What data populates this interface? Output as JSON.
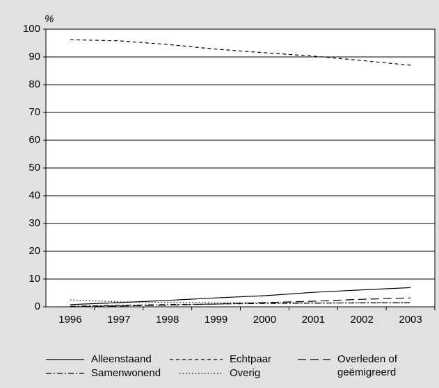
{
  "chart_data": {
    "type": "line",
    "y_label": "%",
    "categories": [
      "1996",
      "1997",
      "1998",
      "1999",
      "2000",
      "2001",
      "2002",
      "2003"
    ],
    "series": [
      {
        "name": "Alleenstaand",
        "color": "#000000",
        "values": [
          0.8,
          1.5,
          2.3,
          3.2,
          4.0,
          5.2,
          6.1,
          6.9
        ]
      },
      {
        "name": "Echtpaar",
        "color": "#000000",
        "values": [
          96.2,
          95.8,
          94.5,
          92.8,
          91.5,
          90.3,
          88.7,
          87.0
        ]
      },
      {
        "name": "Overleden of geëmigreerd",
        "color": "#000000",
        "values": [
          0.0,
          0.3,
          0.6,
          1.0,
          1.5,
          2.0,
          2.7,
          3.2
        ]
      },
      {
        "name": "Samenwonend",
        "color": "#000000",
        "values": [
          0.2,
          0.5,
          0.8,
          1.0,
          1.2,
          1.3,
          1.4,
          1.5
        ]
      },
      {
        "name": "Overig",
        "color": "#000000",
        "values": [
          2.5,
          1.8,
          1.6,
          1.5,
          1.4,
          1.4,
          1.5,
          1.5
        ]
      }
    ],
    "ylim": [
      0,
      100
    ],
    "yticks": [
      0,
      10,
      20,
      30,
      40,
      50,
      60,
      70,
      80,
      90,
      100
    ],
    "grid": true
  }
}
